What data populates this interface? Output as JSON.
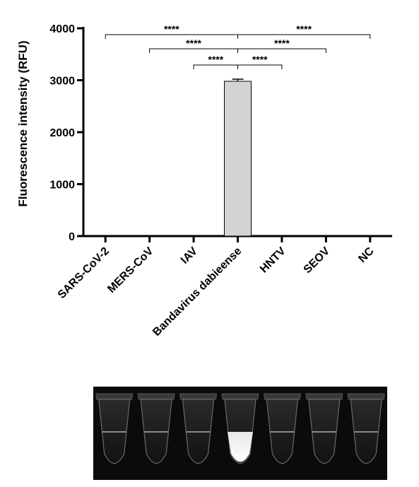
{
  "chart_data": {
    "type": "bar",
    "ylabel": "Fluorescence intensity (RFU)",
    "xlabel": "",
    "ylim": [
      0,
      4000
    ],
    "y_ticks": [
      "0",
      "1000",
      "2000",
      "3000",
      "4000"
    ],
    "y_tick_values": [
      0,
      1000,
      2000,
      3000,
      4000
    ],
    "categories": [
      "SARS-CoV-2",
      "MERS-CoV",
      "IAV",
      "Bandavirus dabieense",
      "HNTV",
      "SEOV",
      "NC"
    ],
    "values": [
      0,
      0,
      0,
      2980,
      0,
      0,
      0
    ],
    "error": [
      0,
      0,
      0,
      40,
      0,
      0,
      0
    ],
    "bar_color": "#d3d3d3",
    "significance": [
      {
        "from": "SARS-CoV-2",
        "to": "Bandavirus dabieense",
        "label": "****"
      },
      {
        "from": "MERS-CoV",
        "to": "Bandavirus dabieense",
        "label": "****"
      },
      {
        "from": "IAV",
        "to": "Bandavirus dabieense",
        "label": "****"
      },
      {
        "from": "Bandavirus dabieense",
        "to": "NC",
        "label": "****"
      },
      {
        "from": "Bandavirus dabieense",
        "to": "SEOV",
        "label": "****"
      },
      {
        "from": "Bandavirus dabieense",
        "to": "HNTV",
        "label": "****"
      }
    ],
    "grid": false,
    "legend": "none"
  },
  "image_panel": {
    "tube_count": 7,
    "tube_brightness": [
      0.12,
      0.12,
      0.12,
      1.0,
      0.12,
      0.12,
      0.12
    ]
  }
}
